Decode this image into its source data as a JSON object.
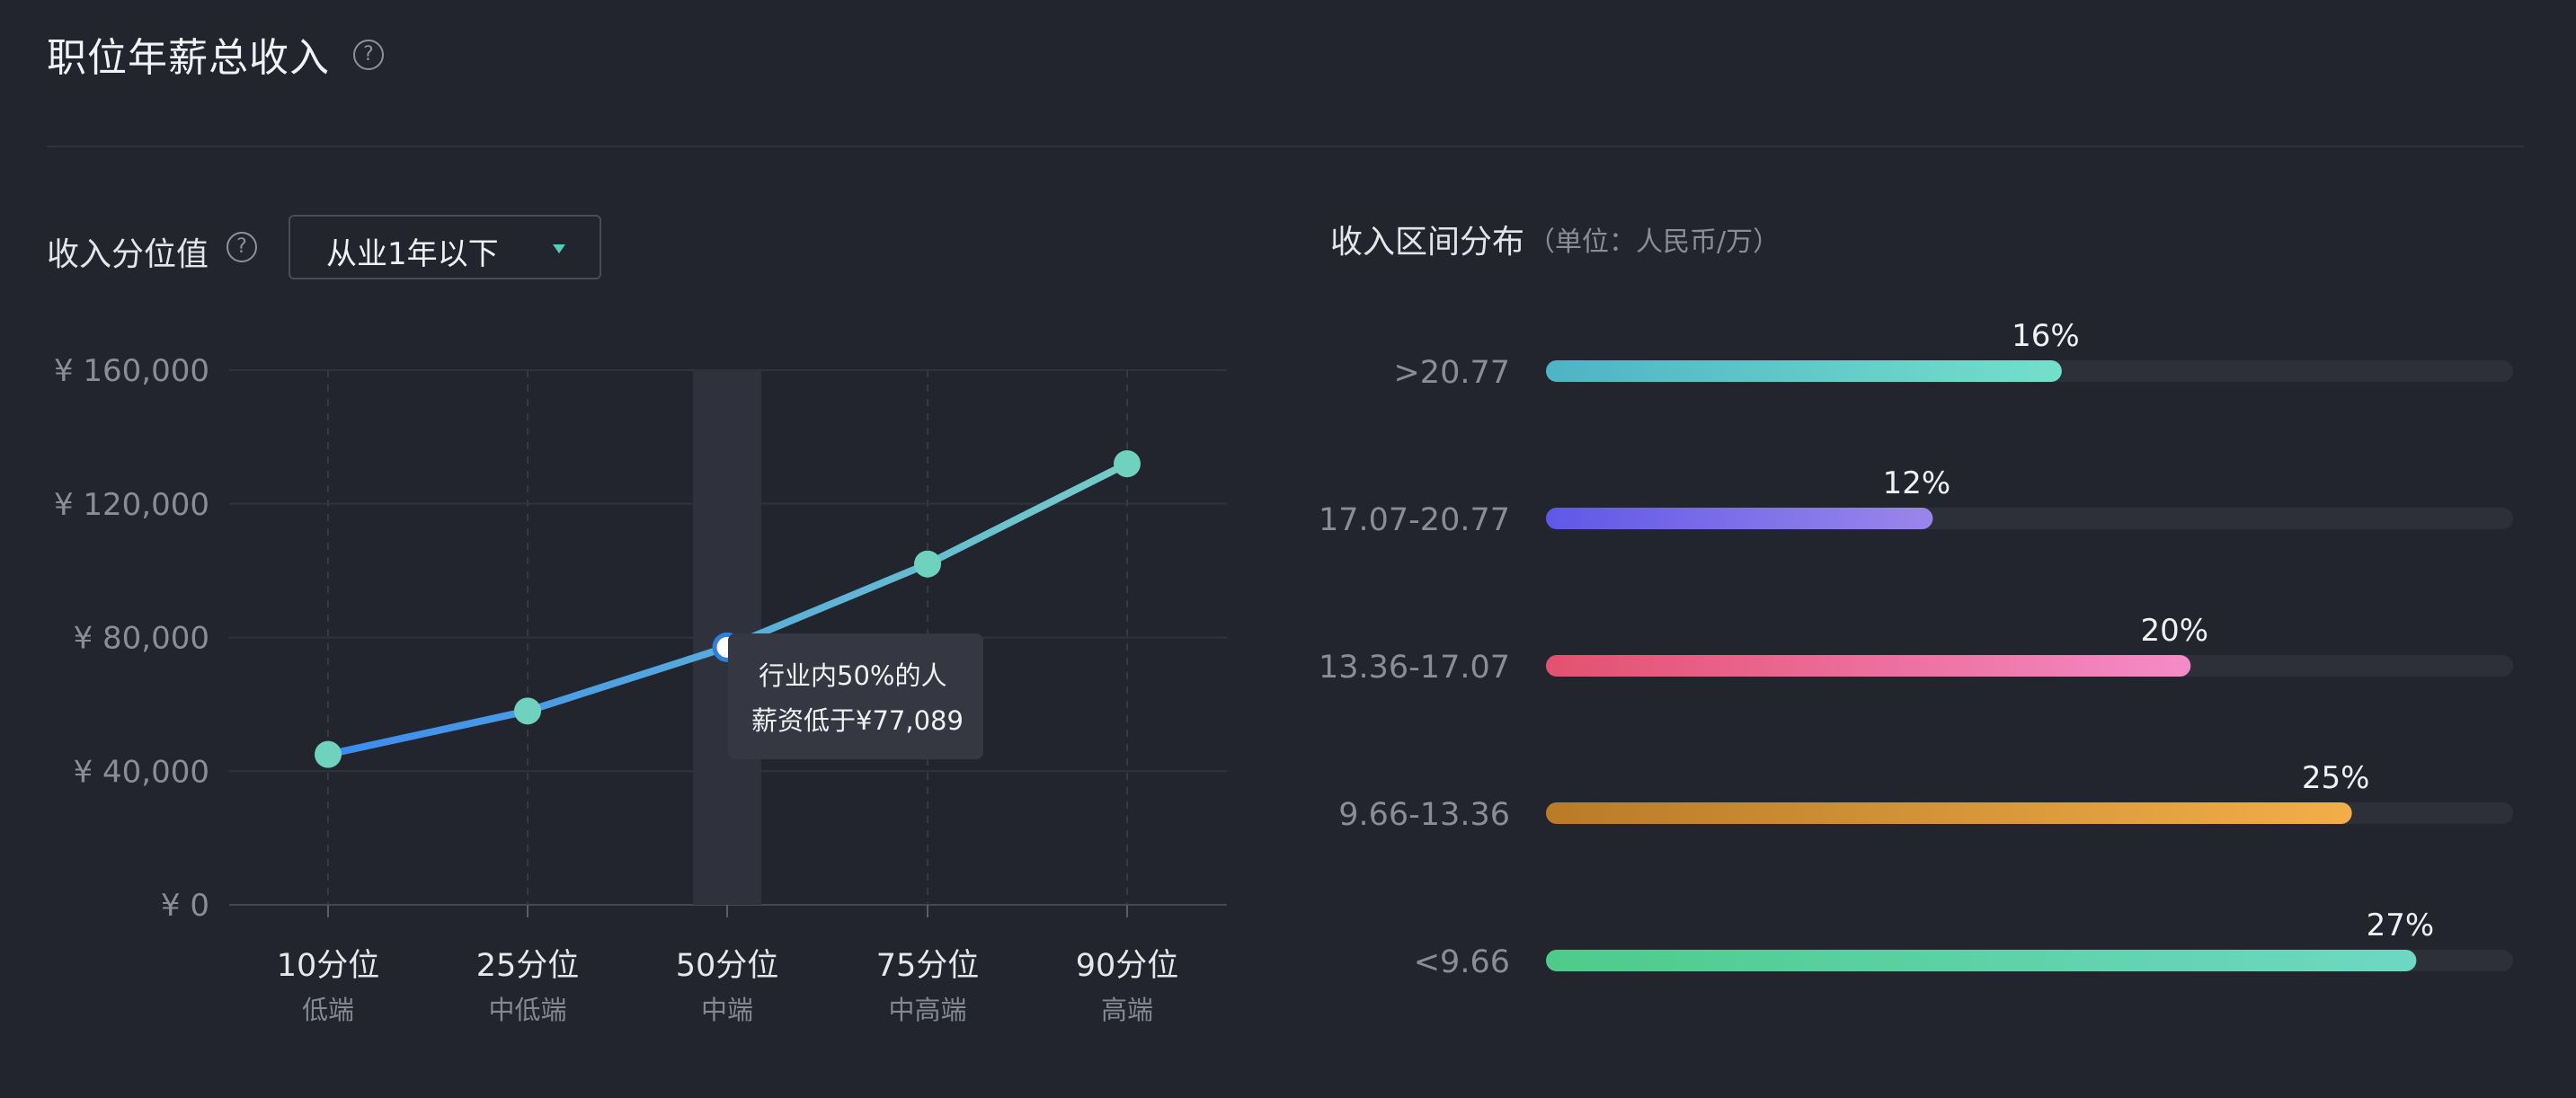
{
  "header": {
    "title": "职位年薪总收入",
    "help_icon": "?"
  },
  "percentile": {
    "label": "收入分位值",
    "help_icon": "?",
    "dropdown_value": "从业1年以下",
    "tooltip_line1": "行业内50%的人",
    "tooltip_line2": "薪资低于¥77,089"
  },
  "distribution": {
    "title": "收入区间分布",
    "unit": "（单位：人民币/万）"
  },
  "colors": {
    "line_start": "#3b8bf0",
    "line_end": "#74cdc6",
    "point": "#6fd2bf",
    "background": "#22252e"
  },
  "chart_data": [
    {
      "type": "line",
      "categories": [
        "10分位",
        "25分位",
        "50分位",
        "75分位",
        "90分位"
      ],
      "sublabels": [
        "低端",
        "中低端",
        "中端",
        "中高端",
        "高端"
      ],
      "values": [
        45000,
        58000,
        77089,
        102000,
        132000
      ],
      "highlight_index": 2,
      "ylim": [
        0,
        160000
      ],
      "yticks": [
        0,
        40000,
        80000,
        120000,
        160000
      ],
      "ytick_labels": [
        "¥ 0",
        "¥ 40,000",
        "¥ 80,000",
        "¥ 120,000",
        "¥ 160,000"
      ],
      "grid": true
    },
    {
      "type": "bar",
      "orientation": "horizontal",
      "categories": [
        ">20.77",
        "17.07-20.77",
        "13.36-17.07",
        "9.66-13.36",
        "<9.66"
      ],
      "values": [
        16,
        12,
        20,
        25,
        27
      ],
      "value_labels": [
        "16%",
        "12%",
        "20%",
        "25%",
        "27%"
      ],
      "xlim": [
        0,
        30
      ],
      "gradients": [
        [
          "#4fb3c6",
          "#73e0cb"
        ],
        [
          "#5f58e8",
          "#9a86ea"
        ],
        [
          "#e3516f",
          "#f48bc8"
        ],
        [
          "#b97b28",
          "#f2ae48"
        ],
        [
          "#4ecb8a",
          "#6dd8c4"
        ]
      ]
    }
  ]
}
